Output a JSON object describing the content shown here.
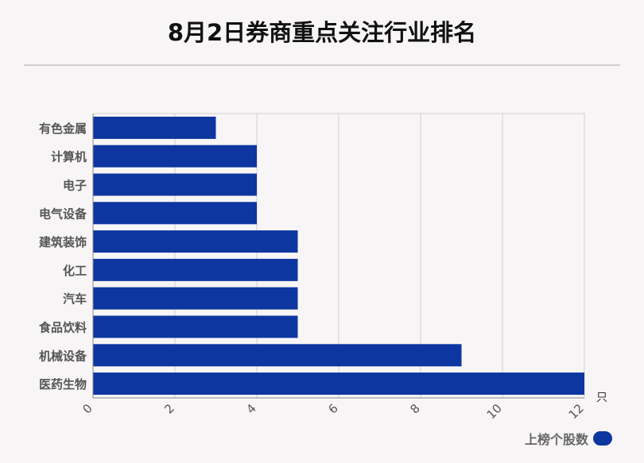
{
  "title": "8月2日券商重点关注行业排名",
  "chart_data": {
    "type": "bar",
    "orientation": "horizontal",
    "categories": [
      "有色金属",
      "计算机",
      "电子",
      "电气设备",
      "建筑装饰",
      "化工",
      "汽车",
      "食品饮料",
      "机械设备",
      "医药生物"
    ],
    "series": [
      {
        "name": "上榜个股数",
        "values": [
          3,
          4,
          4,
          4,
          5,
          5,
          5,
          5,
          9,
          12
        ]
      }
    ],
    "xlim": [
      0,
      12
    ],
    "xticks": [
      0,
      2,
      4,
      6,
      8,
      10,
      12
    ],
    "xunit": "只",
    "grid": true,
    "legend_position": "bottom-right",
    "bar_color": "#0d36a0"
  }
}
